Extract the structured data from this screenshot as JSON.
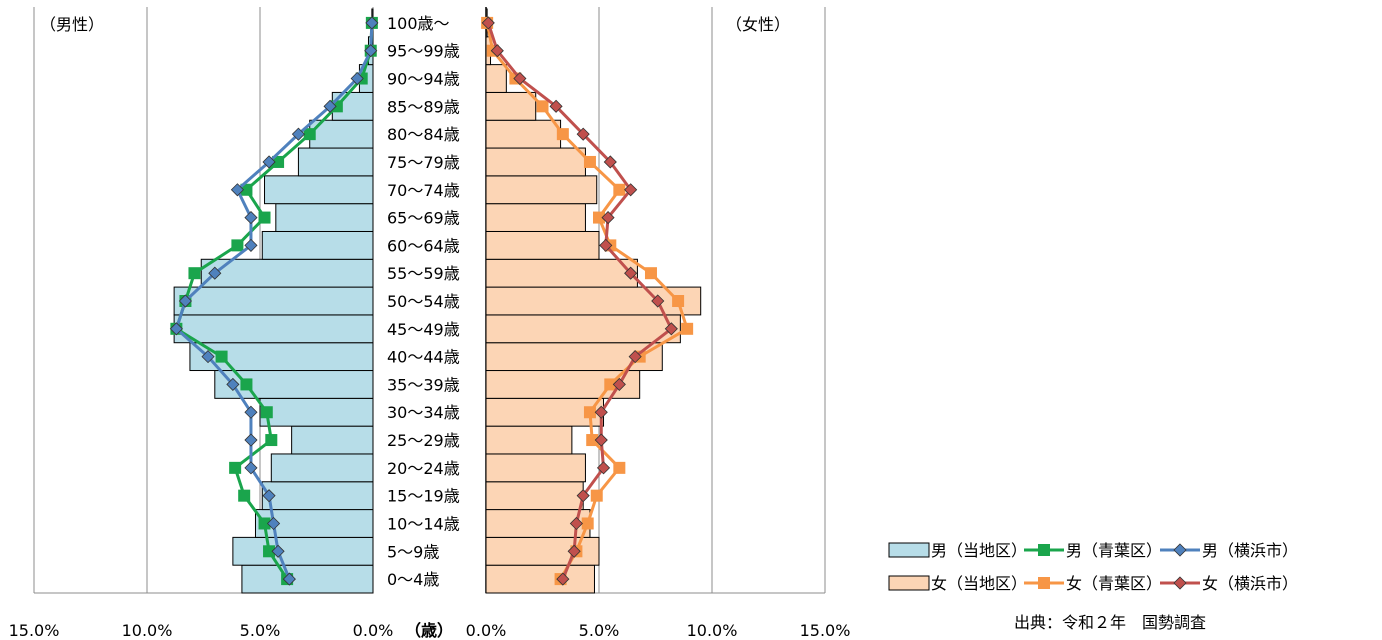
{
  "chart_data": {
    "type": "bar",
    "subtype": "population-pyramid",
    "categories": [
      "0～4歳",
      "5～9歳",
      "10～14歳",
      "15～19歳",
      "20～24歳",
      "25～29歳",
      "30～34歳",
      "35～39歳",
      "40～44歳",
      "45～49歳",
      "50～54歳",
      "55～59歳",
      "60～64歳",
      "65～69歳",
      "70～74歳",
      "75～79歳",
      "80～84歳",
      "85～89歳",
      "90～94歳",
      "95～99歳",
      "100歳～"
    ],
    "axis_unit_label": "（歳）",
    "left_label": "（男性）",
    "right_label": "（女性）",
    "xlim": [
      0,
      15
    ],
    "ticks": [
      15,
      10,
      5,
      0
    ],
    "tick_labels_left": [
      "15.0%",
      "10.0%",
      "5.0%",
      "0.0%"
    ],
    "tick_labels_right": [
      "0.0%",
      "5.0%",
      "10.0%",
      "15.0%"
    ],
    "grid": true,
    "legend_position": "bottom-right",
    "series": [
      {
        "name": "男（当地区）",
        "side": "left",
        "kind": "bar",
        "color": "#b7dde8",
        "stroke": "#000000",
        "values": [
          5.8,
          6.2,
          5.2,
          4.9,
          4.5,
          3.6,
          5.0,
          7.0,
          8.1,
          8.8,
          8.8,
          7.6,
          4.9,
          4.3,
          4.8,
          3.3,
          2.8,
          1.8,
          0.6,
          0.2,
          0.05
        ]
      },
      {
        "name": "男（青葉区）",
        "side": "left",
        "kind": "line",
        "color": "#1aa54c",
        "marker": "square",
        "values": [
          3.8,
          4.6,
          4.8,
          5.7,
          6.1,
          4.5,
          4.7,
          5.6,
          6.7,
          8.7,
          8.3,
          7.9,
          6.0,
          4.8,
          5.6,
          4.2,
          2.8,
          1.6,
          0.5,
          0.1,
          0.05
        ]
      },
      {
        "name": "男（横浜市）",
        "side": "left",
        "kind": "line",
        "color": "#4f81bd",
        "marker": "diamond",
        "values": [
          3.7,
          4.2,
          4.4,
          4.6,
          5.4,
          5.4,
          5.4,
          6.2,
          7.3,
          8.7,
          8.3,
          7.0,
          5.4,
          5.4,
          6.0,
          4.6,
          3.3,
          1.9,
          0.7,
          0.1,
          0.05
        ]
      },
      {
        "name": "女（当地区）",
        "side": "right",
        "kind": "bar",
        "color": "#fcd5b5",
        "stroke": "#000000",
        "values": [
          4.8,
          5.0,
          4.6,
          4.3,
          4.4,
          3.8,
          5.2,
          6.8,
          7.8,
          8.6,
          9.5,
          6.7,
          5.0,
          4.4,
          4.9,
          4.4,
          3.3,
          2.2,
          0.9,
          0.2,
          0.05
        ]
      },
      {
        "name": "女（青葉区）",
        "side": "right",
        "kind": "line",
        "color": "#f79646",
        "marker": "square",
        "values": [
          3.3,
          4.0,
          4.5,
          4.9,
          5.9,
          4.7,
          4.6,
          5.5,
          6.8,
          8.9,
          8.5,
          7.3,
          5.5,
          5.0,
          5.9,
          4.6,
          3.4,
          2.5,
          1.3,
          0.3,
          0.05
        ]
      },
      {
        "name": "女（横浜市）",
        "side": "right",
        "kind": "line",
        "color": "#c0504d",
        "marker": "diamond",
        "values": [
          3.4,
          3.9,
          4.0,
          4.3,
          5.2,
          5.1,
          5.1,
          5.9,
          6.6,
          8.2,
          7.6,
          6.4,
          5.3,
          5.4,
          6.4,
          5.5,
          4.3,
          3.1,
          1.5,
          0.5,
          0.1
        ]
      }
    ]
  },
  "source_note": "出典：令和２年　国勢調査"
}
